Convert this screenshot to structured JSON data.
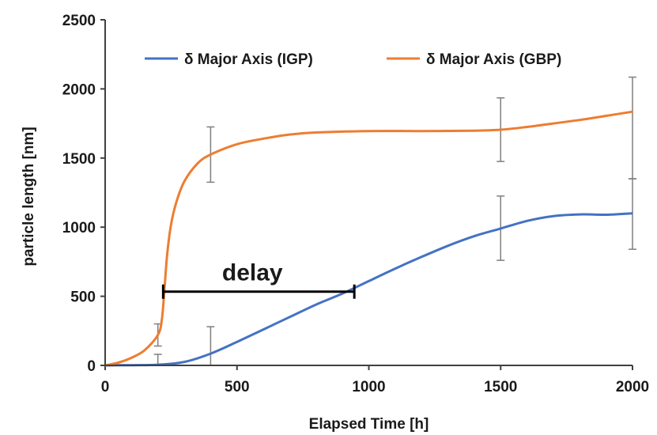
{
  "chart_data": {
    "type": "line",
    "title": "",
    "xlabel": "Elapsed Time [h]",
    "ylabel": "particle length [nm]",
    "xlim": [
      0,
      2000
    ],
    "ylim": [
      0,
      2500
    ],
    "x_ticks": [
      0,
      500,
      1000,
      1500,
      2000
    ],
    "y_ticks": [
      0,
      500,
      1000,
      1500,
      2000,
      2500
    ],
    "grid": false,
    "legend_position": "top",
    "series": [
      {
        "name": "δ Major Axis (IGP)",
        "color": "#4472C4",
        "points": [
          [
            0,
            0
          ],
          [
            100,
            2
          ],
          [
            200,
            5
          ],
          [
            300,
            25
          ],
          [
            400,
            85
          ],
          [
            500,
            170
          ],
          [
            600,
            260
          ],
          [
            700,
            350
          ],
          [
            800,
            440
          ],
          [
            900,
            520
          ],
          [
            1000,
            610
          ],
          [
            1100,
            700
          ],
          [
            1200,
            785
          ],
          [
            1300,
            865
          ],
          [
            1400,
            935
          ],
          [
            1500,
            990
          ],
          [
            1600,
            1045
          ],
          [
            1700,
            1080
          ],
          [
            1800,
            1092
          ],
          [
            1900,
            1090
          ],
          [
            2000,
            1100
          ]
        ],
        "error_bars": [
          {
            "x": 200,
            "y": 5,
            "low": 0,
            "high": 80
          },
          {
            "x": 400,
            "y": 85,
            "low": 0,
            "high": 280
          },
          {
            "x": 1500,
            "y": 990,
            "low": 760,
            "high": 1225
          },
          {
            "x": 2000,
            "y": 1100,
            "low": 840,
            "high": 1350
          }
        ]
      },
      {
        "name": "δ Major Axis (GBP)",
        "color": "#ED7D31",
        "points": [
          [
            0,
            0
          ],
          [
            50,
            20
          ],
          [
            100,
            55
          ],
          [
            150,
            110
          ],
          [
            200,
            220
          ],
          [
            215,
            330
          ],
          [
            225,
            550
          ],
          [
            235,
            800
          ],
          [
            250,
            1020
          ],
          [
            270,
            1180
          ],
          [
            300,
            1330
          ],
          [
            350,
            1460
          ],
          [
            400,
            1525
          ],
          [
            500,
            1600
          ],
          [
            600,
            1640
          ],
          [
            700,
            1670
          ],
          [
            800,
            1685
          ],
          [
            1000,
            1695
          ],
          [
            1200,
            1695
          ],
          [
            1400,
            1698
          ],
          [
            1500,
            1705
          ],
          [
            1600,
            1725
          ],
          [
            1700,
            1750
          ],
          [
            1800,
            1775
          ],
          [
            1900,
            1805
          ],
          [
            2000,
            1835
          ]
        ],
        "error_bars": [
          {
            "x": 200,
            "y": 220,
            "low": 140,
            "high": 300
          },
          {
            "x": 400,
            "y": 1525,
            "low": 1325,
            "high": 1725
          },
          {
            "x": 1500,
            "y": 1705,
            "low": 1475,
            "high": 1935
          },
          {
            "x": 2000,
            "y": 1835,
            "low": 1350,
            "high": 2085
          }
        ]
      }
    ],
    "annotations": [
      {
        "text": "delay",
        "type": "bracket",
        "x_start": 220,
        "x_end": 945,
        "y": 545
      }
    ]
  }
}
